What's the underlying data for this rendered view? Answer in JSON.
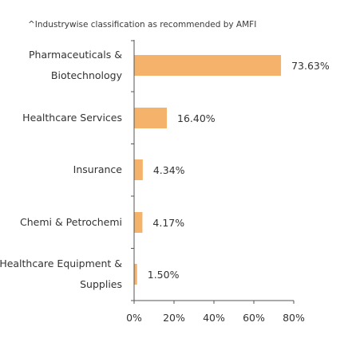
{
  "note": "^Industrywise classification as recommended by AMFI",
  "colors": {
    "bar": "#F5B26B",
    "axis": "#555555"
  },
  "chart_data": {
    "type": "bar",
    "orientation": "horizontal",
    "categories": [
      [
        "Pharmaceuticals &",
        "Biotechnology"
      ],
      [
        "Healthcare Services"
      ],
      [
        "Insurance"
      ],
      [
        "Chemi & Petrochemi"
      ],
      [
        "Healthcare Equipment &",
        "Supplies"
      ]
    ],
    "values": [
      73.63,
      16.4,
      4.34,
      4.17,
      1.5
    ],
    "value_labels": [
      "73.63%",
      "16.40%",
      "4.34%",
      "4.17%",
      "1.50%"
    ],
    "xlim": [
      0,
      80
    ],
    "xticks": [
      0,
      20,
      40,
      60,
      80
    ],
    "xtick_labels": [
      "0%",
      "20%",
      "40%",
      "60%",
      "80%"
    ],
    "grid": false,
    "legend": "none"
  }
}
